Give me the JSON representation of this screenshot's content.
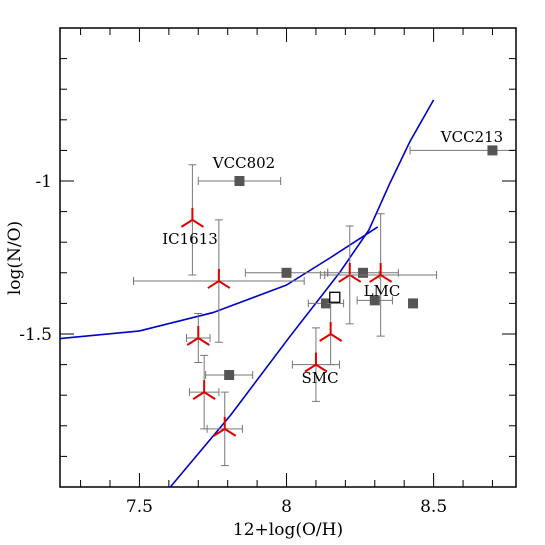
{
  "chart_data": {
    "type": "scatter",
    "xlabel": "12+log(O/H)",
    "ylabel": "log(N/O)",
    "xlim": [
      7.23,
      8.78
    ],
    "ylim": [
      -2,
      -0.5
    ],
    "xticks": [
      7.5,
      8,
      8.5
    ],
    "yticks": [
      -1,
      -1.5
    ],
    "xminorticks": [
      7.3,
      7.4,
      7.6,
      7.7,
      7.8,
      7.9,
      8.1,
      8.2,
      8.3,
      8.4,
      8.6,
      8.7
    ],
    "yminorticks": [
      -1.9,
      -1.8,
      -1.7,
      -1.6,
      -1.4,
      -1.3,
      -1.2,
      -1.1,
      -0.9,
      -0.8,
      -0.7,
      -0.6
    ],
    "series": [
      {
        "marker": "square",
        "color": "#555555",
        "x": [
          7.84,
          8.7,
          8.0,
          8.134,
          8.26,
          8.3,
          8.43,
          7.805
        ],
        "y": [
          -1.0,
          -0.9,
          -1.3,
          -1.4,
          -1.3,
          -1.39,
          -1.4,
          -1.634
        ],
        "xerr": [
          0.14,
          0.28,
          0.14,
          0.06,
          0.12,
          0.06,
          null,
          0.08
        ],
        "yerr": [
          null,
          null,
          null,
          null,
          null,
          null,
          null,
          null
        ]
      },
      {
        "marker": "open-square",
        "color": "#000000",
        "x": [
          8.164
        ],
        "y": [
          -1.38
        ],
        "xerr": [
          null
        ],
        "yerr": [
          null
        ]
      },
      {
        "marker": "tripod",
        "color": "#e00000",
        "x": [
          7.68,
          7.77,
          7.7,
          7.72,
          7.79,
          8.1,
          8.15,
          8.215,
          8.32
        ],
        "y": [
          -1.127,
          -1.327,
          -1.513,
          -1.69,
          -1.81,
          -1.6,
          -1.5,
          -1.307,
          -1.307
        ],
        "xerr": [
          null,
          0.29,
          0.04,
          0.05,
          0.06,
          0.08,
          null,
          0.1,
          0.19
        ],
        "yerr": [
          0.18,
          0.2,
          0.08,
          0.12,
          0.12,
          0.12,
          0.1,
          0.16,
          0.2
        ]
      }
    ],
    "curves": [
      {
        "color": "#0000cc",
        "x": [
          7.23,
          7.5,
          7.75,
          8.0,
          8.15,
          8.31
        ],
        "y": [
          -1.515,
          -1.49,
          -1.43,
          -1.34,
          -1.25,
          -1.15
        ]
      },
      {
        "color": "#0000cc",
        "x": [
          7.605,
          7.81,
          8.01,
          8.18,
          8.28,
          8.35,
          8.42,
          8.5
        ],
        "y": [
          -2.0,
          -1.765,
          -1.51,
          -1.3,
          -1.16,
          -1.01,
          -0.87,
          -0.735
        ]
      }
    ],
    "annotations": [
      "VCC802",
      "VCC213",
      "IC1613",
      "LMC",
      "SMC"
    ]
  }
}
